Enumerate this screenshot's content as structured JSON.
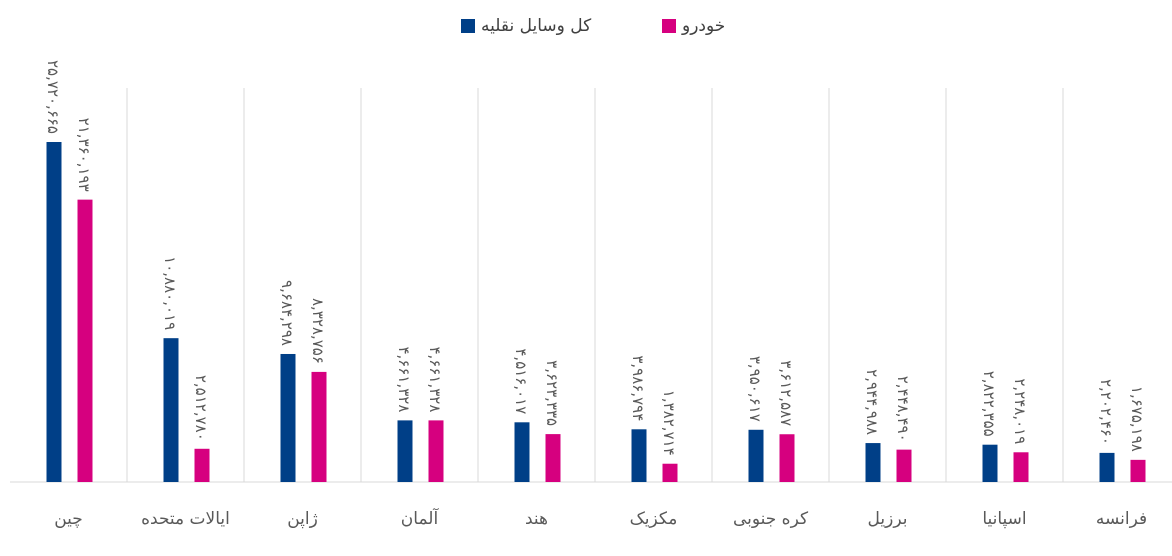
{
  "chart_data": {
    "type": "bar",
    "categories": [
      "چین",
      "ایالات متحده",
      "ژاپن",
      "آلمان",
      "هند",
      "مکزیک",
      "کره جنوبی",
      "برزیل",
      "اسپانیا",
      "فرانسه"
    ],
    "series": [
      {
        "name": "کل وسایل نقلیه",
        "color": "#003f87",
        "values": [
          25720665,
          10880019,
          9684298,
          4661328,
          4516017,
          3986794,
          3950617,
          2944988,
          2822355,
          2202460
        ],
        "value_labels": [
          "۲۵,۷۲۰,۶۶۵",
          "۱۰,۸۸۰,۰۱۹",
          "۹,۶۸۴,۲۹۸",
          "۴,۶۶۱,۳۲۸",
          "۴,۵۱۶,۰۱۷",
          "۳,۹۸۶,۷۹۴",
          "۳,۹۵۰,۶۱۷",
          "۲,۹۴۴,۹۸۸",
          "۲,۸۲۲,۳۵۵",
          "۲,۲۰۲,۴۶۰"
        ]
      },
      {
        "name": "خودرو",
        "color": "#d6007f",
        "values": [
          21360193,
          2512780,
          8328756,
          4661328,
          3623335,
          1382714,
          3612587,
          2448490,
          2248019,
          1675198
        ],
        "value_labels": [
          "۲۱,۳۶۰,۱۹۳",
          "۲,۵۱۲,۷۸۰",
          "۸,۳۲۸,۷۵۶",
          "۴,۶۶۱,۳۲۸",
          "۳,۶۲۳,۳۳۵",
          "۱,۳۸۲,۷۱۴",
          "۳,۶۱۲,۵۸۷",
          "۲,۴۴۸,۴۹۰",
          "۲,۲۴۸,۰۱۹",
          "۱,۶۷۵,۱۹۸"
        ]
      }
    ],
    "legend": "top"
  }
}
